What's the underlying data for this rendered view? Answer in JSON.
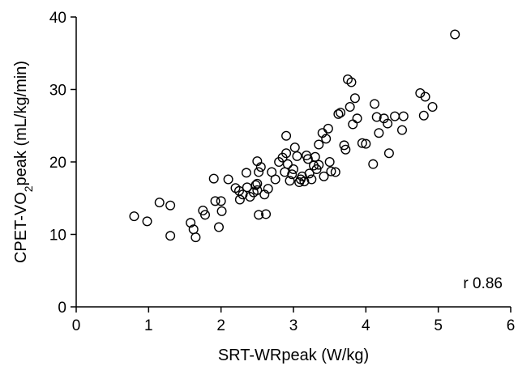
{
  "chart_data": {
    "type": "scatter",
    "title": "",
    "xlabel": "SRT-WRpeak (W/kg)",
    "ylabel_parts": {
      "pre": "CPET-VO",
      "sub": "2",
      "post": "peak (mL/kg/min)"
    },
    "xlim": [
      0,
      6
    ],
    "ylim": [
      0,
      40
    ],
    "xticks": [
      0,
      1,
      2,
      3,
      4,
      5,
      6
    ],
    "yticks": [
      0,
      10,
      20,
      30,
      40
    ],
    "grid": false,
    "annotation": "r 0.86",
    "marker": "open-circle",
    "points": [
      [
        0.8,
        12.5
      ],
      [
        0.98,
        11.8
      ],
      [
        1.15,
        14.4
      ],
      [
        1.3,
        14.0
      ],
      [
        1.3,
        9.8
      ],
      [
        1.58,
        11.6
      ],
      [
        1.62,
        10.7
      ],
      [
        1.65,
        9.6
      ],
      [
        1.75,
        13.3
      ],
      [
        1.78,
        12.7
      ],
      [
        1.9,
        17.7
      ],
      [
        1.92,
        14.6
      ],
      [
        1.97,
        11.0
      ],
      [
        2.0,
        14.6
      ],
      [
        2.01,
        13.2
      ],
      [
        2.1,
        17.6
      ],
      [
        2.2,
        16.4
      ],
      [
        2.25,
        16.0
      ],
      [
        2.26,
        14.8
      ],
      [
        2.3,
        15.5
      ],
      [
        2.35,
        18.5
      ],
      [
        2.36,
        16.5
      ],
      [
        2.4,
        15.2
      ],
      [
        2.45,
        15.8
      ],
      [
        2.48,
        16.8
      ],
      [
        2.5,
        17.0
      ],
      [
        2.5,
        16.1
      ],
      [
        2.5,
        20.1
      ],
      [
        2.52,
        18.6
      ],
      [
        2.52,
        12.7
      ],
      [
        2.55,
        19.3
      ],
      [
        2.6,
        15.5
      ],
      [
        2.62,
        12.8
      ],
      [
        2.65,
        16.3
      ],
      [
        2.7,
        18.6
      ],
      [
        2.75,
        17.6
      ],
      [
        2.8,
        20.0
      ],
      [
        2.85,
        20.6
      ],
      [
        2.88,
        18.6
      ],
      [
        2.9,
        21.2
      ],
      [
        2.9,
        23.6
      ],
      [
        2.92,
        19.7
      ],
      [
        2.95,
        17.4
      ],
      [
        2.98,
        18.3
      ],
      [
        3.0,
        19.0
      ],
      [
        3.02,
        22.0
      ],
      [
        3.05,
        20.8
      ],
      [
        3.08,
        17.2
      ],
      [
        3.1,
        17.6
      ],
      [
        3.12,
        18.0
      ],
      [
        3.15,
        17.3
      ],
      [
        3.18,
        20.9
      ],
      [
        3.2,
        20.4
      ],
      [
        3.22,
        18.4
      ],
      [
        3.25,
        17.6
      ],
      [
        3.28,
        19.5
      ],
      [
        3.3,
        20.7
      ],
      [
        3.32,
        19.0
      ],
      [
        3.35,
        19.6
      ],
      [
        3.35,
        22.4
      ],
      [
        3.4,
        24.0
      ],
      [
        3.42,
        18.0
      ],
      [
        3.45,
        23.2
      ],
      [
        3.48,
        24.6
      ],
      [
        3.5,
        20.0
      ],
      [
        3.52,
        18.7
      ],
      [
        3.58,
        18.6
      ],
      [
        3.62,
        26.6
      ],
      [
        3.65,
        26.8
      ],
      [
        3.7,
        22.3
      ],
      [
        3.72,
        21.7
      ],
      [
        3.75,
        31.4
      ],
      [
        3.78,
        27.6
      ],
      [
        3.8,
        31.0
      ],
      [
        3.82,
        25.2
      ],
      [
        3.85,
        28.8
      ],
      [
        3.88,
        26.0
      ],
      [
        3.95,
        22.6
      ],
      [
        4.0,
        22.5
      ],
      [
        4.1,
        19.7
      ],
      [
        4.12,
        28.0
      ],
      [
        4.15,
        26.2
      ],
      [
        4.18,
        24.0
      ],
      [
        4.25,
        26.0
      ],
      [
        4.3,
        25.3
      ],
      [
        4.32,
        21.2
      ],
      [
        4.4,
        26.3
      ],
      [
        4.5,
        24.4
      ],
      [
        4.52,
        26.3
      ],
      [
        4.75,
        29.5
      ],
      [
        4.8,
        26.4
      ],
      [
        4.82,
        29.0
      ],
      [
        4.92,
        27.6
      ],
      [
        5.23,
        37.6
      ]
    ]
  }
}
